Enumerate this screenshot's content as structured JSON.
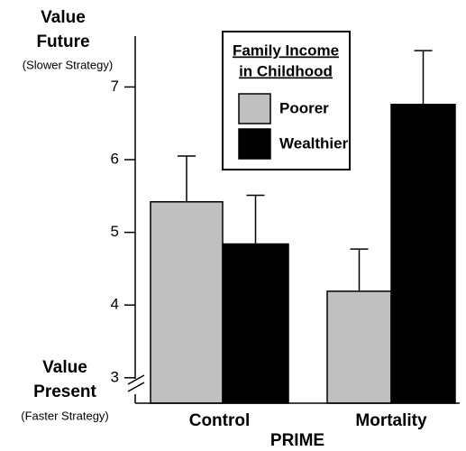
{
  "chart_data": {
    "type": "bar",
    "y_label_top": [
      "Value",
      "Future"
    ],
    "y_note_top": "(Slower Strategy)",
    "y_label_bottom": [
      "Value",
      "Present"
    ],
    "y_note_bottom": "(Faster Strategy)",
    "x_label": "PRIME",
    "legend_title": [
      "Family Income",
      "in Childhood"
    ],
    "categories": [
      "Control",
      "Mortality"
    ],
    "series": [
      {
        "name": "Poorer",
        "color": "#c0c0c0",
        "values": [
          5.42,
          4.19
        ],
        "errors": [
          0.63,
          0.58
        ]
      },
      {
        "name": "Wealthier",
        "color": "#000000",
        "values": [
          4.84,
          6.76
        ],
        "errors": [
          0.67,
          0.74
        ]
      }
    ],
    "ylim": [
      2.65,
      7.7
    ],
    "yticks": [
      3,
      4,
      5,
      6,
      7
    ]
  }
}
